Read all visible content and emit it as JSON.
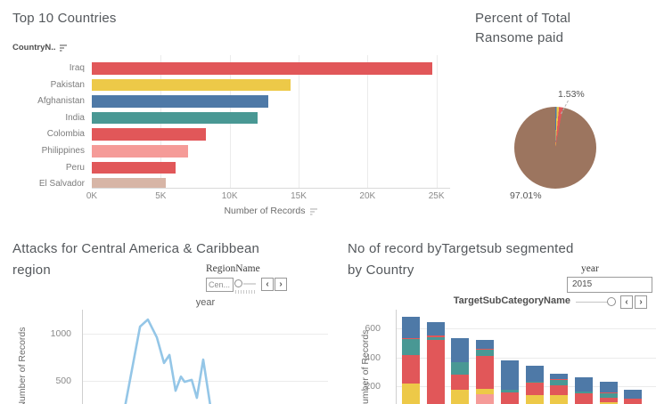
{
  "palette": {
    "red": "#E15759",
    "yellow": "#EDC948",
    "blue": "#4E79A7",
    "teal": "#499894",
    "pink": "#F59B98",
    "beige": "#D7B5A6",
    "brown": "#9C755F",
    "lightblue": "#94C6E7"
  },
  "chart_data": [
    {
      "type": "bar",
      "orientation": "horizontal",
      "title": "Top 10 Countries",
      "row_field_label": "CountryN..",
      "xlabel": "Number of Records",
      "x_ticks": [
        "0K",
        "5K",
        "10K",
        "15K",
        "20K",
        "25K"
      ],
      "xlim": [
        0,
        26000
      ],
      "categories": [
        "Iraq",
        "Pakistan",
        "Afghanistan",
        "India",
        "Colombia",
        "Philippines",
        "Peru",
        "El Salvador"
      ],
      "values": [
        24700,
        14400,
        12800,
        12000,
        8300,
        7000,
        6100,
        5400
      ],
      "colors": [
        "red",
        "yellow",
        "blue",
        "teal",
        "red",
        "pink",
        "red",
        "beige"
      ]
    },
    {
      "type": "pie",
      "title_lines": [
        "Percent of Total",
        "Ransome paid"
      ],
      "slices": [
        {
          "pct": 0.6,
          "color": "blue",
          "label": ""
        },
        {
          "pct": 0.86,
          "color": "yellow",
          "label": ""
        },
        {
          "pct": 1.53,
          "color": "red",
          "label": "1.53%"
        },
        {
          "pct": 97.01,
          "color": "brown",
          "label": "97.01%"
        }
      ],
      "label_small": "1.53%",
      "label_large": "97.01%"
    },
    {
      "type": "line",
      "title_lines": [
        "Attacks for Central America & Caribbean",
        "region"
      ],
      "xlabel": "year",
      "ylabel": "Number of Records",
      "y_ticks": [
        "1000",
        "500"
      ],
      "color": "lightblue",
      "points": [
        [
          0.171,
          215
        ],
        [
          0.233,
          1075
        ],
        [
          0.265,
          1150
        ],
        [
          0.302,
          960
        ],
        [
          0.331,
          690
        ],
        [
          0.353,
          775
        ],
        [
          0.378,
          395
        ],
        [
          0.4,
          545
        ],
        [
          0.415,
          490
        ],
        [
          0.444,
          510
        ],
        [
          0.465,
          320
        ],
        [
          0.491,
          725
        ],
        [
          0.52,
          235
        ]
      ]
    },
    {
      "type": "stacked-bar",
      "title_lines": [
        "No of record byTargetsub segmented",
        "by Country"
      ],
      "ylabel": "Number of Records",
      "y_ticks": [
        "600",
        "400",
        "200"
      ],
      "bars": [
        {
          "total": 680,
          "segments": [
            [
              "yellow",
              220
            ],
            [
              "red",
              195
            ],
            [
              "teal",
              110
            ],
            [
              "red",
              8
            ],
            [
              "blue",
              147
            ]
          ]
        },
        {
          "total": 640,
          "segments": [
            [
              "red",
              520
            ],
            [
              "teal",
              20
            ],
            [
              "red",
              8
            ],
            [
              "blue",
              92
            ]
          ]
        },
        {
          "total": 535,
          "segments": [
            [
              "yellow",
              180
            ],
            [
              "red",
              100
            ],
            [
              "teal",
              85
            ],
            [
              "blue",
              170
            ]
          ]
        },
        {
          "total": 520,
          "segments": [
            [
              "pink",
              145
            ],
            [
              "yellow",
              40
            ],
            [
              "red",
              225
            ],
            [
              "teal",
              40
            ],
            [
              "red",
              8
            ],
            [
              "blue",
              62
            ]
          ]
        },
        {
          "total": 380,
          "segments": [
            [
              "red",
              160
            ],
            [
              "teal",
              15
            ],
            [
              "blue",
              205
            ]
          ]
        },
        {
          "total": 340,
          "segments": [
            [
              "yellow",
              140
            ],
            [
              "red",
              85
            ],
            [
              "teal",
              10
            ],
            [
              "blue",
              105
            ]
          ]
        },
        {
          "total": 290,
          "segments": [
            [
              "yellow",
              140
            ],
            [
              "red",
              70
            ],
            [
              "teal",
              35
            ],
            [
              "red",
              6
            ],
            [
              "blue",
              39
            ]
          ]
        },
        {
          "total": 260,
          "segments": [
            [
              "red",
              155
            ],
            [
              "teal",
              12
            ],
            [
              "blue",
              93
            ]
          ]
        },
        {
          "total": 230,
          "segments": [
            [
              "yellow",
              90
            ],
            [
              "red",
              35
            ],
            [
              "teal",
              25
            ],
            [
              "red",
              8
            ],
            [
              "blue",
              72
            ]
          ]
        },
        {
          "total": 180,
          "segments": [
            [
              "red",
              115
            ],
            [
              "blue",
              65
            ]
          ]
        }
      ]
    }
  ],
  "filters": {
    "region": {
      "title": "RegionName",
      "value": "Cen..."
    },
    "year": {
      "title": "year",
      "value": "2015"
    },
    "target_sub": {
      "label": "TargetSubCategoryName"
    }
  },
  "icons": {
    "chevron_left": "‹",
    "chevron_right": "›"
  }
}
